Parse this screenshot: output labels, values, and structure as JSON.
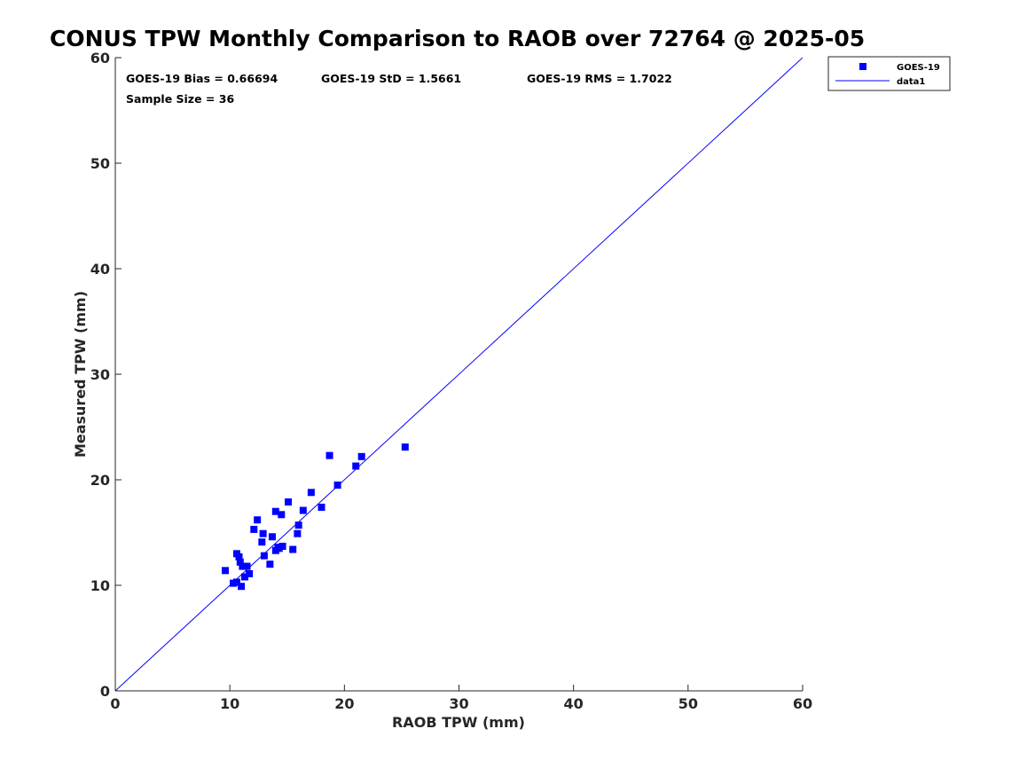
{
  "chart_data": {
    "type": "scatter",
    "title": "CONUS TPW Monthly Comparison to RAOB over 72764 @ 2025-05",
    "xlabel": "RAOB TPW (mm)",
    "ylabel": "Measured TPW (mm)",
    "xlim": [
      0,
      60
    ],
    "ylim": [
      0,
      60
    ],
    "xticks": [
      0,
      10,
      20,
      30,
      40,
      50,
      60
    ],
    "yticks": [
      0,
      10,
      20,
      30,
      40,
      50,
      60
    ],
    "tick_labels_x": [
      "0",
      "10",
      "20",
      "30",
      "40",
      "50",
      "60"
    ],
    "tick_labels_y": [
      "0",
      "10",
      "20",
      "30",
      "40",
      "50",
      "60"
    ],
    "grid": false,
    "legend_position": "outside top-right",
    "series": [
      {
        "name": "GOES-19",
        "kind": "markers",
        "marker": "square",
        "color": "#0000ff",
        "points": [
          [
            9.6,
            11.4
          ],
          [
            10.3,
            10.2
          ],
          [
            10.6,
            13.0
          ],
          [
            10.6,
            10.3
          ],
          [
            10.8,
            12.7
          ],
          [
            10.9,
            12.2
          ],
          [
            11.0,
            9.9
          ],
          [
            11.1,
            11.8
          ],
          [
            11.3,
            10.8
          ],
          [
            11.5,
            11.8
          ],
          [
            11.7,
            11.1
          ],
          [
            12.1,
            15.3
          ],
          [
            12.4,
            16.2
          ],
          [
            12.8,
            14.1
          ],
          [
            12.9,
            14.9
          ],
          [
            13.0,
            12.8
          ],
          [
            13.5,
            12.0
          ],
          [
            13.7,
            14.6
          ],
          [
            14.0,
            17.0
          ],
          [
            14.0,
            13.3
          ],
          [
            14.2,
            13.6
          ],
          [
            14.5,
            16.7
          ],
          [
            14.6,
            13.7
          ],
          [
            15.1,
            17.9
          ],
          [
            15.5,
            13.4
          ],
          [
            15.9,
            14.9
          ],
          [
            16.0,
            15.7
          ],
          [
            16.4,
            17.1
          ],
          [
            17.1,
            18.8
          ],
          [
            18.0,
            17.4
          ],
          [
            18.7,
            22.3
          ],
          [
            19.4,
            19.5
          ],
          [
            21.0,
            21.3
          ],
          [
            21.5,
            22.2
          ],
          [
            25.3,
            23.1
          ],
          [
            14.3,
            13.5
          ]
        ]
      },
      {
        "name": "data1",
        "kind": "line",
        "color": "#0000ff",
        "points": [
          [
            0,
            0
          ],
          [
            60,
            60
          ]
        ]
      }
    ],
    "annotations": {
      "bias": "GOES-19 Bias = 0.66694",
      "std": "GOES-19 StD = 1.5661",
      "rms": "GOES-19 RMS = 1.7022",
      "sample": "Sample Size = 36"
    }
  }
}
